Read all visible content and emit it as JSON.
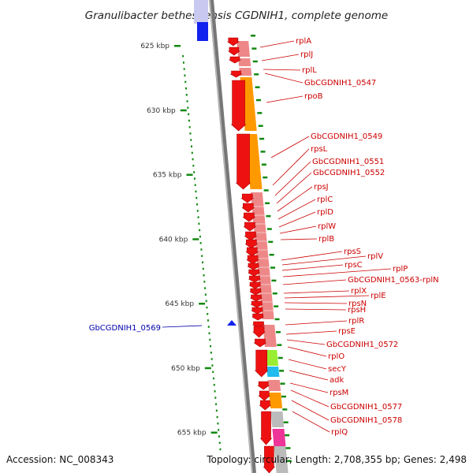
{
  "title": "Granulibacter bethesdensis CGDNIH1, complete genome",
  "footer": {
    "accession": "Accession: NC_008343",
    "topology": "Topology: circular; Length: 2,708,355 bp; Genes: 2,498"
  },
  "colors": {
    "plus_label": "#cc0000",
    "minus_label": "#0000aa",
    "gene_arrow": "#ee1111",
    "track_pink": "#ee8888",
    "track_orange": "#ff9900",
    "track_green": "#99ee33",
    "track_cyan": "#22bbee",
    "track_gray": "#bbbbbb",
    "track_magenta": "#ee3399",
    "marker_blue": "#1122ee",
    "dot_green": "#118811"
  },
  "scale": {
    "unit": "kbp",
    "ticks": [
      {
        "kbp": 625,
        "label": "625 kbp"
      },
      {
        "kbp": 630,
        "label": "630 kbp"
      },
      {
        "kbp": 635,
        "label": "635 kbp"
      },
      {
        "kbp": 640,
        "label": "640 kbp"
      },
      {
        "kbp": 645,
        "label": "645 kbp"
      },
      {
        "kbp": 650,
        "label": "650 kbp"
      },
      {
        "kbp": 655,
        "label": "655 kbp"
      }
    ]
  },
  "genes": [
    {
      "name": "rplA",
      "strand": "+"
    },
    {
      "name": "rplJ",
      "strand": "+"
    },
    {
      "name": "rplL",
      "strand": "+"
    },
    {
      "name": "GbCGDNIH1_0547",
      "strand": "+"
    },
    {
      "name": "rpoB",
      "strand": "+"
    },
    {
      "name": "GbCGDNIH1_0549",
      "strand": "+"
    },
    {
      "name": "rpsL",
      "strand": "+"
    },
    {
      "name": "GbCGDNIH1_0551",
      "strand": "+"
    },
    {
      "name": "GbCGDNIH1_0552",
      "strand": "+"
    },
    {
      "name": "rpsJ",
      "strand": "+"
    },
    {
      "name": "rplC",
      "strand": "+"
    },
    {
      "name": "rplD",
      "strand": "+"
    },
    {
      "name": "rplW",
      "strand": "+"
    },
    {
      "name": "rplB",
      "strand": "+"
    },
    {
      "name": "rpsS",
      "strand": "+"
    },
    {
      "name": "rplV",
      "strand": "+"
    },
    {
      "name": "rpsC",
      "strand": "+"
    },
    {
      "name": "rplP",
      "strand": "+"
    },
    {
      "name": "GbCGDNIH1_0563-rplN",
      "strand": "+"
    },
    {
      "name": "rplX",
      "strand": "+"
    },
    {
      "name": "rplE",
      "strand": "+"
    },
    {
      "name": "rpsN",
      "strand": "+"
    },
    {
      "name": "rpsH",
      "strand": "+"
    },
    {
      "name": "rplR",
      "strand": "+"
    },
    {
      "name": "rpsE",
      "strand": "+"
    },
    {
      "name": "GbCGDNIH1_0572",
      "strand": "+"
    },
    {
      "name": "rplO",
      "strand": "+"
    },
    {
      "name": "secY",
      "strand": "+"
    },
    {
      "name": "adk",
      "strand": "+"
    },
    {
      "name": "rpsM",
      "strand": "+"
    },
    {
      "name": "GbCGDNIH1_0577",
      "strand": "+"
    },
    {
      "name": "GbCGDNIH1_0578",
      "strand": "+"
    },
    {
      "name": "rplQ",
      "strand": "+"
    },
    {
      "name": "GbCGDNIH1_0569",
      "strand": "-"
    }
  ]
}
